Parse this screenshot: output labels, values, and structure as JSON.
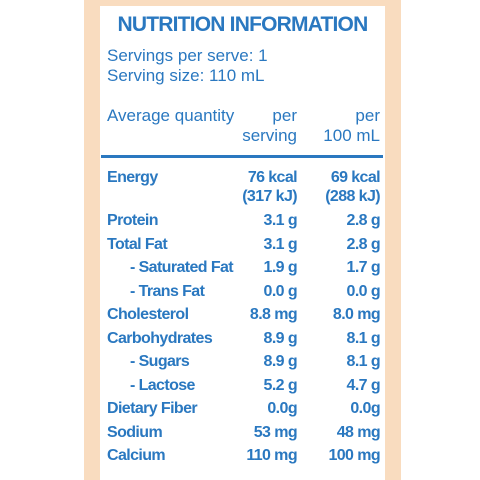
{
  "title": "NUTRITION INFORMATION",
  "servings": [
    "Servings per serve: 1",
    "Serving size: 110 mL"
  ],
  "header": {
    "quantity": "Average quantity",
    "per_serving": [
      "per",
      "serving"
    ],
    "per_100ml": [
      "per",
      "100 mL"
    ]
  },
  "rows": [
    {
      "name": "Energy",
      "per_serving": [
        "76 kcal",
        "(317 kJ)"
      ],
      "per_100ml": [
        "69 kcal",
        "(288 kJ)"
      ]
    },
    {
      "name": "Protein",
      "per_serving": [
        "3.1 g"
      ],
      "per_100ml": [
        "2.8 g"
      ]
    },
    {
      "name": "Total Fat",
      "per_serving": [
        "3.1 g"
      ],
      "per_100ml": [
        "2.8 g"
      ]
    },
    {
      "name": "- Saturated Fat",
      "per_serving": [
        "1.9 g"
      ],
      "per_100ml": [
        "1.7 g"
      ]
    },
    {
      "name": "- Trans Fat",
      "per_serving": [
        "0.0 g"
      ],
      "per_100ml": [
        "0.0 g"
      ]
    },
    {
      "name": "Cholesterol",
      "per_serving": [
        "8.8 mg"
      ],
      "per_100ml": [
        "8.0 mg"
      ]
    },
    {
      "name": "Carbohydrates",
      "per_serving": [
        "8.9 g"
      ],
      "per_100ml": [
        "8.1 g"
      ]
    },
    {
      "name": "- Sugars",
      "per_serving": [
        "8.9 g"
      ],
      "per_100ml": [
        "8.1 g"
      ]
    },
    {
      "name": "- Lactose",
      "per_serving": [
        "5.2 g"
      ],
      "per_100ml": [
        "4.7 g"
      ]
    },
    {
      "name": "Dietary Fiber",
      "per_serving": [
        "0.0g"
      ],
      "per_100ml": [
        "0.0g"
      ]
    },
    {
      "name": "Sodium",
      "per_serving": [
        "53 mg"
      ],
      "per_100ml": [
        "48 mg"
      ]
    },
    {
      "name": "Calcium",
      "per_serving": [
        "110 mg"
      ],
      "per_100ml": [
        "100 mg"
      ]
    }
  ]
}
